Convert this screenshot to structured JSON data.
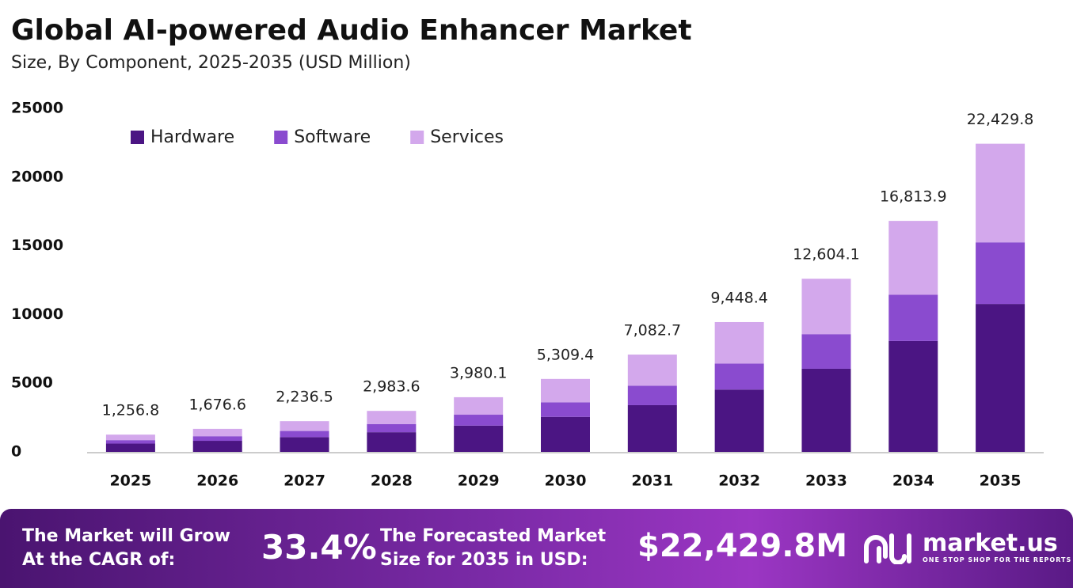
{
  "chart_data": {
    "type": "stacked-bar",
    "title": "Global AI-powered Audio Enhancer Market",
    "subtitle": "Size, By Component, 2025-2035 (USD Million)",
    "categories": [
      "2025",
      "2026",
      "2027",
      "2028",
      "2029",
      "2030",
      "2031",
      "2032",
      "2033",
      "2034",
      "2035"
    ],
    "series": [
      {
        "name": "Hardware",
        "color": "#4b1583",
        "values": [
          603.3,
          804.8,
          1073.5,
          1432.1,
          1910.4,
          2548.5,
          3399.7,
          4535.2,
          6050.0,
          8070.7,
          10766.3
        ]
      },
      {
        "name": "Software",
        "color": "#8a4bcf",
        "values": [
          251.4,
          335.3,
          447.3,
          596.7,
          796.0,
          1061.9,
          1416.5,
          1889.7,
          2520.8,
          3362.8,
          4486.0
        ]
      },
      {
        "name": "Services",
        "color": "#d3a8ec",
        "values": [
          402.1,
          536.5,
          715.7,
          954.8,
          1273.7,
          1699.0,
          2266.5,
          3023.5,
          4033.3,
          5380.4,
          7177.5
        ]
      }
    ],
    "totals": [
      1256.8,
      1676.6,
      2236.5,
      2983.6,
      3980.1,
      5309.4,
      7082.7,
      9448.4,
      12604.1,
      16813.9,
      22429.8
    ],
    "totals_labels": [
      "1,256.8",
      "1,676.6",
      "2,236.5",
      "2,983.6",
      "3,980.1",
      "5,309.4",
      "7,082.7",
      "9,448.4",
      "12,604.1",
      "16,813.9",
      "22,429.8"
    ],
    "ylim": [
      0,
      25000
    ],
    "yticks": [
      0,
      5000,
      10000,
      15000,
      20000,
      25000
    ],
    "grid": false,
    "legend": "top-left"
  },
  "banner": {
    "cagr_text": "The Market will Grow At the CAGR of:",
    "cagr": "33.4%",
    "forecast_text": "The Forecasted Market Size for 2035 in USD:",
    "forecast": "$22,429.8M",
    "brand": "market.us",
    "tagline": "ONE STOP SHOP FOR THE REPORTS"
  }
}
